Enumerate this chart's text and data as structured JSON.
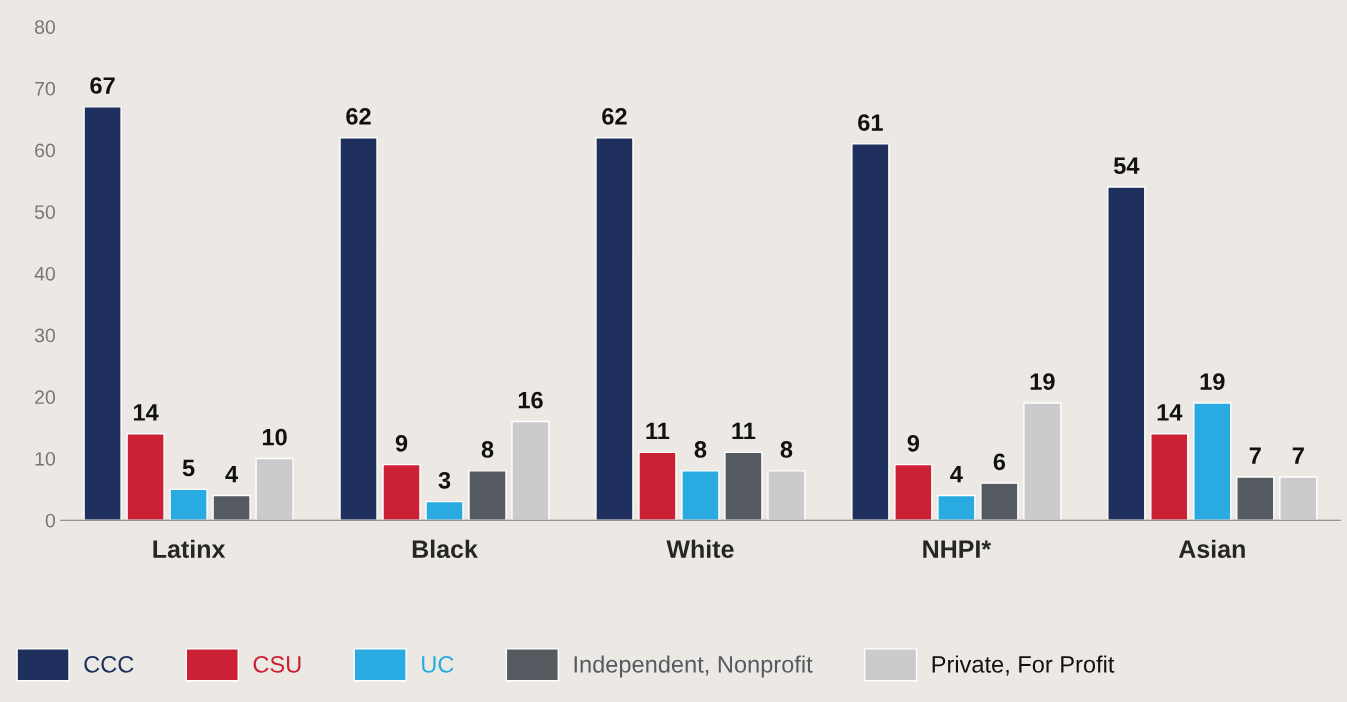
{
  "chart_data": {
    "type": "bar",
    "categories": [
      "Latinx",
      "Black",
      "White",
      "NHPI*",
      "Asian"
    ],
    "series": [
      {
        "name": "CCC",
        "color": "#1f2f5e",
        "values": [
          67,
          62,
          62,
          61,
          54
        ]
      },
      {
        "name": "CSU",
        "color": "#cc2035",
        "values": [
          14,
          9,
          11,
          9,
          14
        ]
      },
      {
        "name": "UC",
        "color": "#29abe2",
        "values": [
          5,
          3,
          8,
          4,
          19
        ]
      },
      {
        "name": "Independent, Nonprofit",
        "color": "#555a61",
        "values": [
          4,
          8,
          11,
          6,
          7
        ]
      },
      {
        "name": "Private, For Profit",
        "color": "#cbcbce",
        "values": [
          10,
          16,
          8,
          19,
          7
        ]
      }
    ],
    "ylim": [
      0,
      80
    ],
    "yticks": [
      0,
      10,
      20,
      30,
      40,
      50,
      60,
      70,
      80
    ],
    "data_labels": true,
    "grid": false,
    "legend": "bottom"
  }
}
